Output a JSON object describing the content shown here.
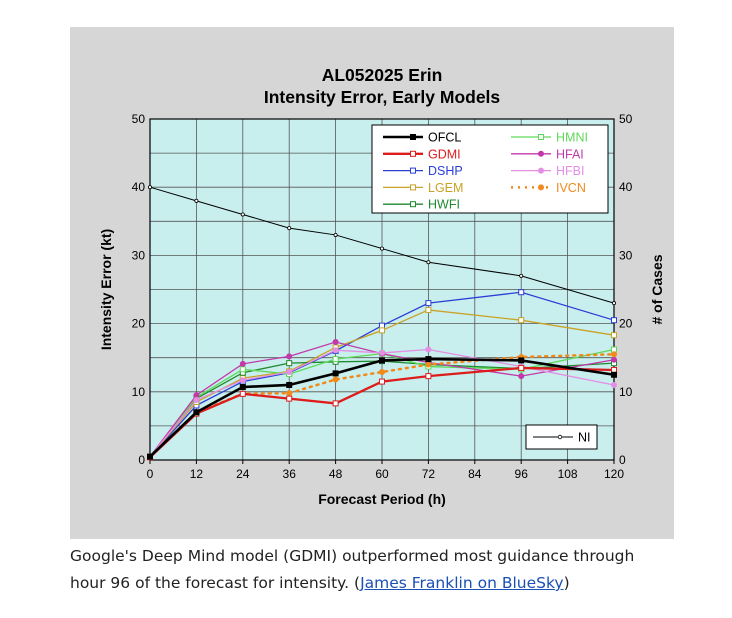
{
  "chart_data": {
    "type": "line",
    "title": "AL052025 Erin",
    "subtitle": "Intensity Error, Early Models",
    "xlabel": "Forecast Period (h)",
    "ylabel": "Intensity Error (kt)",
    "y2label": "# of Cases",
    "xlim": [
      0,
      120
    ],
    "ylim": [
      0,
      50
    ],
    "xticks": [
      0,
      12,
      24,
      36,
      48,
      60,
      72,
      84,
      96,
      108,
      120
    ],
    "yticks": [
      0,
      10,
      20,
      30,
      40,
      50
    ],
    "grid": true,
    "legend_position": "top-right",
    "series": [
      {
        "name": "OFCL",
        "color": "#000000",
        "width": 2.6,
        "marker": "square-filled",
        "dash": "",
        "x": [
          0,
          12,
          24,
          36,
          48,
          60,
          72,
          96,
          120
        ],
        "values": [
          0.5,
          7.0,
          10.7,
          11.0,
          12.7,
          14.6,
          14.8,
          14.6,
          12.5
        ]
      },
      {
        "name": "GDMI",
        "color": "#dd1c1c",
        "width": 2.3,
        "marker": "square-open",
        "dash": "",
        "x": [
          0,
          12,
          24,
          36,
          48,
          60,
          72,
          96,
          120
        ],
        "values": [
          0.4,
          6.8,
          9.7,
          9.0,
          8.3,
          11.5,
          12.3,
          13.5,
          13.2
        ]
      },
      {
        "name": "DSHP",
        "color": "#2a3fd6",
        "width": 1.3,
        "marker": "square-open",
        "dash": "",
        "x": [
          0,
          12,
          24,
          36,
          48,
          60,
          72,
          96,
          120
        ],
        "values": [
          0.5,
          8.0,
          11.5,
          12.8,
          16.0,
          19.7,
          23.0,
          24.6,
          20.5
        ]
      },
      {
        "name": "LGEM",
        "color": "#c9a227",
        "width": 1.3,
        "marker": "square-open",
        "dash": "",
        "x": [
          0,
          12,
          24,
          36,
          48,
          60,
          72,
          96,
          120
        ],
        "values": [
          0.5,
          8.5,
          12.0,
          13.0,
          16.5,
          19.0,
          22.0,
          20.5,
          18.3
        ]
      },
      {
        "name": "HWFI",
        "color": "#1f8a2e",
        "width": 1.3,
        "marker": "square-open",
        "dash": "",
        "x": [
          0,
          12,
          24,
          36,
          48,
          60,
          72,
          96,
          120
        ],
        "values": [
          0.5,
          9.0,
          12.8,
          14.2,
          14.4,
          14.5,
          14.0,
          13.4,
          14.2
        ]
      },
      {
        "name": "HMNI",
        "color": "#5ed95a",
        "width": 1.3,
        "marker": "square-open",
        "dash": "",
        "x": [
          0,
          12,
          24,
          36,
          48,
          60,
          72,
          96,
          120
        ],
        "values": [
          0.5,
          9.2,
          13.3,
          12.6,
          14.8,
          15.6,
          13.7,
          13.3,
          16.2
        ]
      },
      {
        "name": "HFAI",
        "color": "#c23aaa",
        "width": 1.3,
        "marker": "circle-filled",
        "dash": "",
        "x": [
          0,
          12,
          24,
          36,
          48,
          60,
          72,
          96,
          120
        ],
        "values": [
          0.5,
          9.5,
          14.1,
          15.2,
          17.3,
          15.6,
          14.3,
          12.3,
          14.7
        ]
      },
      {
        "name": "HFBI",
        "color": "#e48ee4",
        "width": 1.3,
        "marker": "circle-filled",
        "dash": "",
        "x": [
          0,
          12,
          24,
          36,
          48,
          60,
          72,
          96,
          120
        ],
        "values": [
          0.5,
          8.8,
          11.7,
          12.9,
          16.1,
          15.7,
          16.2,
          13.7,
          11.0
        ]
      },
      {
        "name": "IVCN",
        "color": "#f08a1a",
        "width": 2.5,
        "marker": "circle-filled",
        "dash": "2 5",
        "x": [
          0,
          12,
          24,
          36,
          48,
          60,
          72,
          96,
          120
        ],
        "values": [
          0.5,
          7.0,
          9.7,
          9.8,
          11.8,
          12.9,
          14.0,
          15.1,
          15.5
        ]
      }
    ],
    "cases_series": {
      "name": "NI",
      "color": "#000000",
      "x": [
        0,
        12,
        24,
        36,
        48,
        60,
        72,
        96,
        120
      ],
      "values": [
        40,
        38,
        36,
        34,
        33,
        31,
        29,
        27,
        23
      ]
    },
    "title_color": "#000000"
  },
  "caption": {
    "text": "Google's Deep Mind model (GDMI) outperformed most guidance through hour 96 of the forecast for intensity. (",
    "link_text": "James Franklin on BlueSky",
    "suffix": ")"
  }
}
